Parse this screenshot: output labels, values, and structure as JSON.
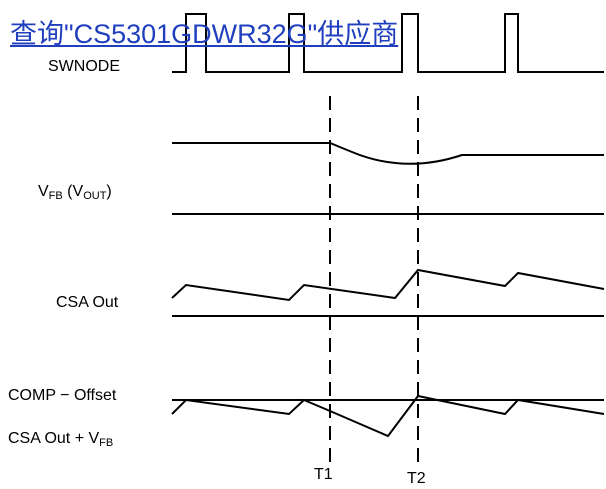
{
  "banner_link": {
    "text": "查询\"CS5301GDWR32G\"供应商"
  },
  "signals": {
    "swnode": "SWNODE",
    "vfb": {
      "main": "V",
      "sub": "FB",
      "paren_open": " (V",
      "paren_sub": "OUT",
      "paren_close": ")"
    },
    "csa_out": "CSA Out",
    "comp_offset": "COMP − Offset",
    "csa_plus_vfb": {
      "main": "CSA Out + V",
      "sub": "FB"
    }
  },
  "markers": {
    "t1": "T1",
    "t2": "T2"
  },
  "colors": {
    "trace": "#000000",
    "link": "#1f3fbf"
  }
}
